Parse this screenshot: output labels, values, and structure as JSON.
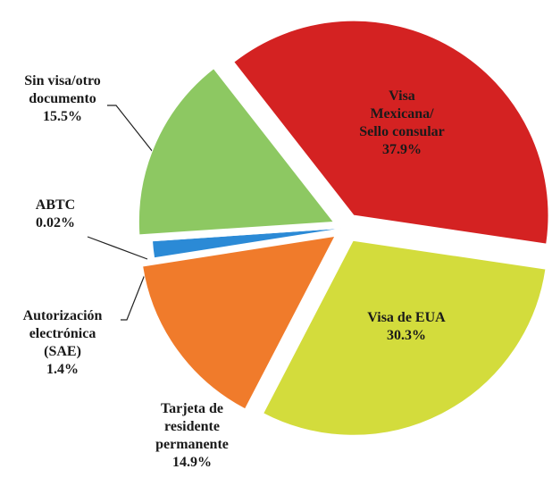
{
  "chart_data": {
    "type": "pie",
    "categories": [
      "Visa\nMexicana/\nSello consular",
      "Visa de EUA",
      "Tarjeta de\nresidente\npermanente",
      "Autorización\nelectrónica\n(SAE)",
      "ABTC",
      "Sin visa/otro\ndocumento"
    ],
    "values": [
      37.9,
      30.3,
      14.9,
      1.4,
      0.02,
      15.5
    ],
    "value_labels": [
      "37.9%",
      "30.3%",
      "14.9%",
      "1.4%",
      "0.02%",
      "15.5%"
    ],
    "colors": [
      "#d42222",
      "#d3dc3c",
      "#f07b2b",
      "#2b8ad6",
      "#a466c8",
      "#8dc862"
    ],
    "exploded": [
      true,
      true,
      true,
      false,
      false,
      true
    ]
  }
}
